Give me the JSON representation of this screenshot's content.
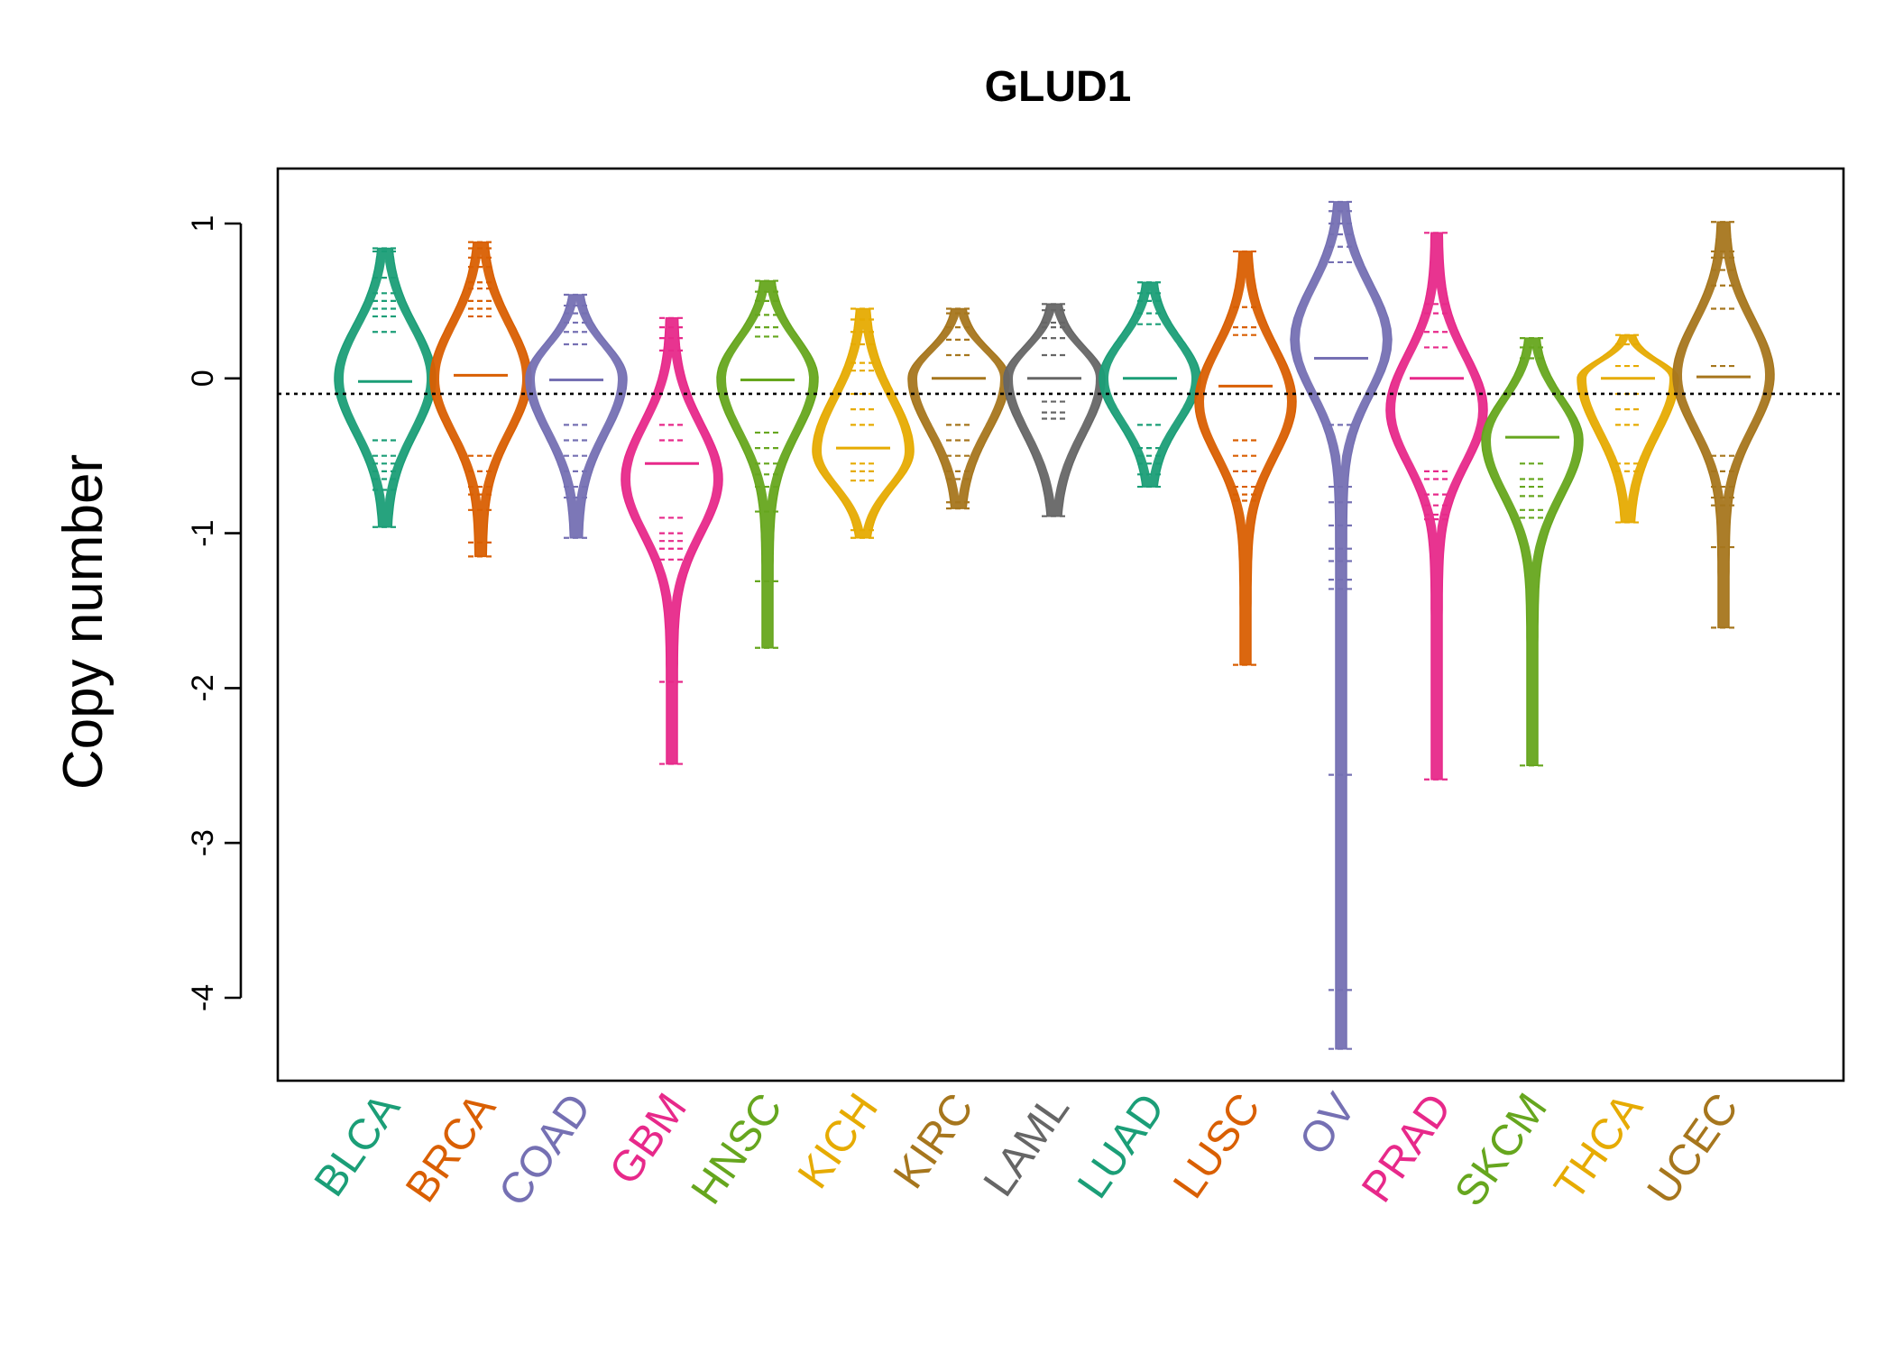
{
  "chart_data": {
    "type": "beanplot",
    "title": "GLUD1",
    "xlabel": "",
    "ylabel": "Copy number",
    "ylim": [
      -4.5,
      1.35
    ],
    "yticks": [
      1,
      0,
      -1,
      -2,
      -3,
      -4
    ],
    "ytick_labels": [
      "1",
      "0",
      "-1",
      "-2",
      "-3",
      "-4"
    ],
    "reference_line": -0.1,
    "grid": false,
    "legend": "none",
    "categories": [
      "BLCA",
      "BRCA",
      "COAD",
      "GBM",
      "HNSC",
      "KICH",
      "KIRC",
      "LAML",
      "LUAD",
      "LUSC",
      "OV",
      "PRAD",
      "SKCM",
      "THCA",
      "UCEC"
    ],
    "colors": [
      "#1b9e77",
      "#d95f02",
      "#7570b3",
      "#e7298a",
      "#66a61e",
      "#e6ab02",
      "#a6761d",
      "#666666",
      "#1b9e77",
      "#d95f02",
      "#7570b3",
      "#e7298a",
      "#66a61e",
      "#e6ab02",
      "#a6761d"
    ],
    "series": [
      {
        "name": "BLCA",
        "mode": 0.0,
        "median": -0.02,
        "min": -0.96,
        "max": 0.84,
        "outliers": [
          0.84,
          0.82,
          0.65,
          0.55,
          0.5,
          0.45,
          0.4,
          0.3,
          -0.4,
          -0.5,
          -0.55,
          -0.6,
          -0.65,
          -0.72,
          -0.96
        ]
      },
      {
        "name": "BRCA",
        "mode": 0.0,
        "median": 0.02,
        "min": -1.15,
        "max": 0.88,
        "outliers": [
          0.88,
          0.84,
          0.78,
          0.72,
          0.62,
          0.58,
          0.5,
          0.45,
          0.4,
          -0.5,
          -0.6,
          -0.7,
          -0.75,
          -0.85,
          -1.06,
          -1.15
        ]
      },
      {
        "name": "COAD",
        "mode": 0.0,
        "median": -0.01,
        "min": -1.03,
        "max": 0.54,
        "outliers": [
          0.54,
          0.47,
          0.42,
          0.36,
          0.3,
          0.22,
          -0.3,
          -0.4,
          -0.5,
          -0.6,
          -0.7,
          -0.77,
          -1.03
        ]
      },
      {
        "name": "GBM",
        "mode": -0.65,
        "median": -0.55,
        "min": -2.49,
        "max": 0.39,
        "outliers": [
          0.39,
          0.33,
          0.26,
          0.18,
          -0.3,
          -0.4,
          -0.9,
          -1.0,
          -1.05,
          -1.1,
          -1.17,
          -1.96,
          -2.49
        ]
      },
      {
        "name": "HNSC",
        "mode": 0.0,
        "median": -0.01,
        "min": -1.74,
        "max": 0.63,
        "outliers": [
          0.63,
          0.56,
          0.5,
          0.41,
          0.33,
          0.27,
          -0.35,
          -0.45,
          -0.55,
          -0.62,
          -0.7,
          -0.86,
          -1.31,
          -1.74
        ]
      },
      {
        "name": "KICH",
        "mode": -0.47,
        "median": -0.45,
        "min": -1.03,
        "max": 0.45,
        "outliers": [
          0.45,
          0.38,
          0.3,
          0.22,
          0.1,
          0.05,
          -0.1,
          -0.2,
          -0.3,
          -0.55,
          -0.6,
          -0.66,
          -0.98,
          -1.03
        ]
      },
      {
        "name": "KIRC",
        "mode": 0.0,
        "median": 0.0,
        "min": -0.84,
        "max": 0.45,
        "outliers": [
          0.45,
          0.42,
          0.33,
          0.25,
          0.15,
          -0.3,
          -0.4,
          -0.5,
          -0.6,
          -0.65,
          -0.8,
          -0.84
        ]
      },
      {
        "name": "LAML",
        "mode": 0.0,
        "median": 0.0,
        "min": -0.89,
        "max": 0.48,
        "outliers": [
          0.48,
          0.44,
          0.36,
          0.33,
          0.26,
          0.15,
          -0.15,
          -0.22,
          -0.26,
          -0.89
        ]
      },
      {
        "name": "LUAD",
        "mode": 0.0,
        "median": 0.0,
        "min": -0.7,
        "max": 0.62,
        "outliers": [
          0.62,
          0.55,
          0.5,
          0.42,
          0.35,
          -0.3,
          -0.45,
          -0.5,
          -0.55,
          -0.62,
          -0.7
        ]
      },
      {
        "name": "LUSC",
        "mode": -0.15,
        "median": -0.05,
        "min": -1.85,
        "max": 0.82,
        "outliers": [
          0.82,
          0.46,
          0.33,
          0.28,
          -0.4,
          -0.5,
          -0.6,
          -0.7,
          -0.75,
          -0.79,
          -1.85
        ]
      },
      {
        "name": "OV",
        "mode": 0.25,
        "median": 0.13,
        "min": -4.33,
        "max": 1.14,
        "outliers": [
          1.14,
          1.08,
          1.0,
          0.93,
          0.85,
          0.75,
          -0.3,
          -0.7,
          -0.8,
          -0.95,
          -1.1,
          -1.18,
          -1.3,
          -1.36,
          -2.56,
          -3.95,
          -4.33
        ]
      },
      {
        "name": "PRAD",
        "mode": -0.2,
        "median": 0.0,
        "min": -2.59,
        "max": 0.94,
        "outliers": [
          0.94,
          0.48,
          0.42,
          0.3,
          0.2,
          -0.6,
          -0.65,
          -0.75,
          -0.82,
          -0.88,
          -0.91,
          -2.59
        ]
      },
      {
        "name": "SKCM",
        "mode": -0.4,
        "median": -0.38,
        "min": -2.5,
        "max": 0.26,
        "outliers": [
          0.26,
          0.2,
          0.13,
          -0.55,
          -0.65,
          -0.7,
          -0.76,
          -0.85,
          -0.9,
          -2.5
        ]
      },
      {
        "name": "THCA",
        "mode": 0.0,
        "median": 0.0,
        "min": -0.93,
        "max": 0.28,
        "outliers": [
          0.28,
          0.22,
          0.08,
          -0.1,
          -0.2,
          -0.3,
          -0.55,
          -0.6,
          -0.93
        ]
      },
      {
        "name": "UCEC",
        "mode": 0.02,
        "median": 0.01,
        "min": -1.61,
        "max": 1.01,
        "outliers": [
          1.01,
          0.82,
          0.78,
          0.7,
          0.6,
          0.45,
          0.08,
          -0.5,
          -0.6,
          -0.7,
          -0.77,
          -0.82,
          -1.09,
          -1.61
        ]
      }
    ]
  }
}
